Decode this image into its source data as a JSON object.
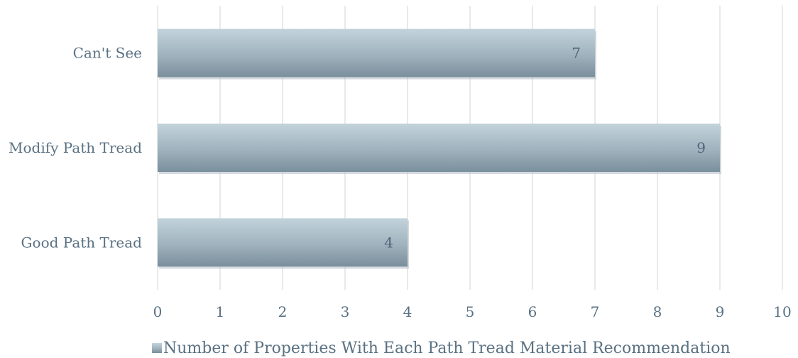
{
  "chart_data": {
    "type": "bar",
    "orientation": "horizontal",
    "categories": [
      "Can't See",
      "Modify Path Tread",
      "Good Path Tread"
    ],
    "series": [
      {
        "name": "Number of Properties With Each Path Tread Material Recommendation",
        "values": [
          7,
          9,
          4
        ]
      }
    ],
    "x_ticks": [
      "0",
      "1",
      "2",
      "3",
      "4",
      "5",
      "6",
      "7",
      "8",
      "9",
      "10"
    ],
    "xlim": [
      0,
      10
    ],
    "grid": "vertical",
    "legend_position": "bottom",
    "bar_color": "#8fa4b0",
    "data_labels": true
  }
}
